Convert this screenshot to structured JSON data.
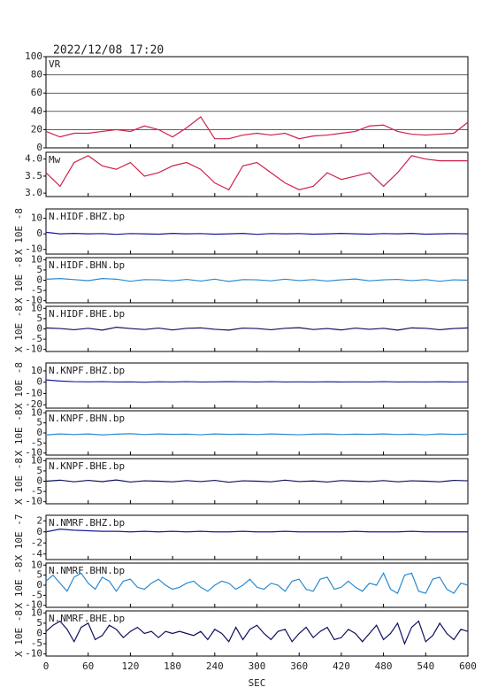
{
  "chart_data": [
    {
      "type": "line",
      "title": "2022/12/08 17:20",
      "x": [
        0,
        20,
        40,
        60,
        80,
        100,
        120,
        140,
        160,
        180,
        200,
        220,
        240,
        260,
        280,
        300,
        320,
        340,
        360,
        380,
        400,
        420,
        440,
        460,
        480,
        500,
        520,
        540,
        560,
        580,
        600
      ],
      "xlim": [
        0,
        600
      ],
      "ylim": [
        0,
        100
      ],
      "yticks": [
        0,
        20,
        40,
        60,
        80,
        100
      ],
      "grid": true,
      "series": [
        {
          "name": "VR",
          "color": "#d0204a",
          "values": [
            18,
            12,
            16,
            16,
            18,
            20,
            18,
            24,
            20,
            12,
            22,
            34,
            10,
            10,
            14,
            16,
            14,
            16,
            10,
            13,
            14,
            16,
            18,
            24,
            25,
            18,
            15,
            14,
            15,
            16,
            28
          ]
        }
      ]
    },
    {
      "type": "line",
      "x": [
        0,
        20,
        40,
        60,
        80,
        100,
        120,
        140,
        160,
        180,
        200,
        220,
        240,
        260,
        280,
        300,
        320,
        340,
        360,
        380,
        400,
        420,
        440,
        460,
        480,
        500,
        520,
        540,
        560,
        580,
        600
      ],
      "xlim": [
        0,
        600
      ],
      "ylim": [
        2.9,
        4.2
      ],
      "yticks": [
        {
          "value": 3,
          "label": "3.0"
        },
        3.5,
        {
          "value": 4,
          "label": "4.0"
        }
      ],
      "series": [
        {
          "name": "Mw",
          "color": "#d0204a",
          "values": [
            3.6,
            3.2,
            3.9,
            4.1,
            3.8,
            3.7,
            3.9,
            3.5,
            3.6,
            3.8,
            3.9,
            3.7,
            3.3,
            3.1,
            3.8,
            3.9,
            3.6,
            3.3,
            3.1,
            3.2,
            3.6,
            3.4,
            3.5,
            3.6,
            3.2,
            3.6,
            4.1,
            4.0,
            3.95,
            3.95,
            3.95
          ]
        }
      ]
    },
    {
      "type": "line",
      "ylabel": "X 10E -8",
      "x": [
        0,
        20,
        40,
        60,
        80,
        100,
        120,
        140,
        160,
        180,
        200,
        220,
        240,
        260,
        280,
        300,
        320,
        340,
        360,
        380,
        400,
        420,
        440,
        460,
        480,
        500,
        520,
        540,
        560,
        580,
        600
      ],
      "xlim": [
        0,
        600
      ],
      "ylim": [
        -13,
        16
      ],
      "yticks": [
        -10,
        0,
        10
      ],
      "series": [
        {
          "name": "N.HIDF.BHZ.bp",
          "color": "#1a1a9a",
          "values": [
            1,
            0,
            0.3,
            0,
            0.2,
            -0.3,
            0.2,
            0,
            -0.2,
            0.3,
            0,
            0.2,
            -0.2,
            0,
            0.3,
            -0.3,
            0.2,
            0,
            0.2,
            -0.2,
            0,
            0.3,
            0,
            -0.2,
            0.2,
            0,
            0.3,
            -0.2,
            0,
            0.2,
            0
          ]
        }
      ]
    },
    {
      "type": "line",
      "ylabel": "X 10E -8",
      "x": [
        0,
        20,
        40,
        60,
        80,
        100,
        120,
        140,
        160,
        180,
        200,
        220,
        240,
        260,
        280,
        300,
        320,
        340,
        360,
        380,
        400,
        420,
        440,
        460,
        480,
        500,
        520,
        540,
        560,
        580,
        600
      ],
      "xlim": [
        0,
        600
      ],
      "ylim": [
        -11,
        11
      ],
      "yticks": [
        -10,
        -5,
        0,
        5,
        10
      ],
      "series": [
        {
          "name": "N.HIDF.BHN.bp",
          "color": "#2a8ad0",
          "values": [
            0.5,
            0.8,
            0.3,
            -0.2,
            0.8,
            0.5,
            -0.5,
            0.3,
            0.2,
            -0.3,
            0.4,
            -0.4,
            0.5,
            -0.6,
            0.3,
            0.2,
            -0.3,
            0.5,
            -0.2,
            0.3,
            -0.4,
            0.2,
            0.6,
            -0.3,
            0.2,
            0.4,
            -0.2,
            0.3,
            -0.5,
            0.2,
            0
          ]
        }
      ]
    },
    {
      "type": "line",
      "ylabel": "X 10E -8",
      "x": [
        0,
        20,
        40,
        60,
        80,
        100,
        120,
        140,
        160,
        180,
        200,
        220,
        240,
        260,
        280,
        300,
        320,
        340,
        360,
        380,
        400,
        420,
        440,
        460,
        480,
        500,
        520,
        540,
        560,
        580,
        600
      ],
      "xlim": [
        0,
        600
      ],
      "ylim": [
        -11,
        11
      ],
      "yticks": [
        -10,
        -5,
        0,
        5,
        10
      ],
      "series": [
        {
          "name": "N.HIDF.BHE.bp",
          "color": "#101060",
          "values": [
            0.5,
            0.2,
            -0.4,
            0.3,
            -0.6,
            0.8,
            0.2,
            -0.3,
            0.4,
            -0.5,
            0.3,
            0.5,
            -0.2,
            -0.6,
            0.4,
            0.2,
            -0.4,
            0.3,
            0.6,
            -0.3,
            0.2,
            -0.5,
            0.4,
            -0.2,
            0.3,
            -0.6,
            0.5,
            0.3,
            -0.4,
            0.2,
            0.5
          ]
        }
      ]
    },
    {
      "type": "line",
      "ylabel": "X 10E -8",
      "x": [
        0,
        20,
        40,
        60,
        80,
        100,
        120,
        140,
        160,
        180,
        200,
        220,
        240,
        260,
        280,
        300,
        320,
        340,
        360,
        380,
        400,
        420,
        440,
        460,
        480,
        500,
        520,
        540,
        560,
        580,
        600
      ],
      "xlim": [
        0,
        600
      ],
      "ylim": [
        -23,
        17
      ],
      "yticks": [
        -20,
        -10,
        0,
        10
      ],
      "series": [
        {
          "name": "N.KNPF.BHZ.bp",
          "color": "#1a1a9a",
          "values": [
            2,
            1,
            0.5,
            0.3,
            0.5,
            0.2,
            0.3,
            0,
            0.4,
            0.2,
            0.5,
            0.2,
            0.3,
            0.5,
            0.4,
            0.2,
            0.5,
            0.2,
            0.3,
            0.2,
            0.4,
            0.2,
            0.3,
            0.2,
            0.5,
            0.2,
            0.3,
            0.2,
            0.4,
            0.2,
            0.3
          ]
        }
      ]
    },
    {
      "type": "line",
      "ylabel": "X 10E -8",
      "x": [
        0,
        20,
        40,
        60,
        80,
        100,
        120,
        140,
        160,
        180,
        200,
        220,
        240,
        260,
        280,
        300,
        320,
        340,
        360,
        380,
        400,
        420,
        440,
        460,
        480,
        500,
        520,
        540,
        560,
        580,
        600
      ],
      "xlim": [
        0,
        600
      ],
      "ylim": [
        -11,
        11
      ],
      "yticks": [
        -10,
        -5,
        0,
        5,
        10
      ],
      "series": [
        {
          "name": "N.KNPF.BHN.bp",
          "color": "#2a8ad0",
          "values": [
            -1,
            -0.5,
            -0.8,
            -0.5,
            -1,
            -0.6,
            -0.4,
            -0.8,
            -0.5,
            -0.7,
            -0.6,
            -0.9,
            -0.5,
            -0.7,
            -0.6,
            -0.8,
            -0.5,
            -0.7,
            -0.9,
            -0.6,
            -0.5,
            -0.8,
            -0.6,
            -0.7,
            -0.5,
            -0.8,
            -0.6,
            -0.9,
            -0.5,
            -0.7,
            -0.6
          ]
        }
      ]
    },
    {
      "type": "line",
      "ylabel": "X 10E -8",
      "x": [
        0,
        20,
        40,
        60,
        80,
        100,
        120,
        140,
        160,
        180,
        200,
        220,
        240,
        260,
        280,
        300,
        320,
        340,
        360,
        380,
        400,
        420,
        440,
        460,
        480,
        500,
        520,
        540,
        560,
        580,
        600
      ],
      "xlim": [
        0,
        600
      ],
      "ylim": [
        -11,
        11
      ],
      "yticks": [
        -10,
        -5,
        0,
        5,
        10
      ],
      "series": [
        {
          "name": "N.KNPF.BHE.bp",
          "color": "#101060",
          "values": [
            0,
            0.5,
            -0.3,
            0.4,
            -0.2,
            0.6,
            -0.4,
            0.2,
            0,
            -0.3,
            0.3,
            -0.2,
            0.4,
            -0.5,
            0.2,
            0,
            -0.3,
            0.5,
            -0.2,
            0.1,
            -0.4,
            0.3,
            0,
            -0.2,
            0.3,
            -0.3,
            0.2,
            0,
            -0.3,
            0.4,
            0.2
          ]
        }
      ]
    },
    {
      "type": "line",
      "ylabel": "X 10E -7",
      "x": [
        0,
        20,
        40,
        60,
        80,
        100,
        120,
        140,
        160,
        180,
        200,
        220,
        240,
        260,
        280,
        300,
        320,
        340,
        360,
        380,
        400,
        420,
        440,
        460,
        480,
        500,
        520,
        540,
        560,
        580,
        600
      ],
      "xlim": [
        0,
        600
      ],
      "ylim": [
        -5,
        3
      ],
      "yticks": [
        -4,
        -2,
        0,
        2
      ],
      "series": [
        {
          "name": "N.NMRF.BHZ.bp",
          "color": "#1a1a9a",
          "values": [
            0,
            0.5,
            0.3,
            0.2,
            0.1,
            0.1,
            0,
            0.1,
            0,
            0.1,
            0,
            0.1,
            0,
            0,
            0.1,
            0,
            0,
            0.1,
            0,
            0,
            0,
            0,
            0.1,
            0,
            0,
            0,
            0.1,
            0,
            0,
            0,
            0
          ]
        }
      ]
    },
    {
      "type": "line",
      "ylabel": "X 10E -8",
      "x": [
        0,
        10,
        20,
        30,
        40,
        50,
        60,
        70,
        80,
        90,
        100,
        110,
        120,
        130,
        140,
        150,
        160,
        170,
        180,
        190,
        200,
        210,
        220,
        230,
        240,
        250,
        260,
        270,
        280,
        290,
        300,
        310,
        320,
        330,
        340,
        350,
        360,
        370,
        380,
        390,
        400,
        410,
        420,
        430,
        440,
        450,
        460,
        470,
        480,
        490,
        500,
        510,
        520,
        530,
        540,
        550,
        560,
        570,
        580,
        590,
        600
      ],
      "xlim": [
        0,
        600
      ],
      "ylim": [
        -11,
        11
      ],
      "yticks": [
        -10,
        -5,
        0,
        5,
        10
      ],
      "series": [
        {
          "name": "N.NMRF.BHN.bp",
          "color": "#2a8ad0",
          "values": [
            2,
            5,
            1,
            -3,
            4,
            6,
            1,
            -2,
            4,
            2,
            -3,
            2,
            3,
            -1,
            -2,
            1,
            3,
            0,
            -2,
            -1,
            1,
            2,
            -1,
            -3,
            0,
            2,
            1,
            -2,
            0,
            3,
            -1,
            -2,
            1,
            0,
            -3,
            2,
            3,
            -2,
            -3,
            3,
            4,
            -2,
            -1,
            2,
            -1,
            -3,
            1,
            0,
            6,
            -2,
            -4,
            5,
            6,
            -3,
            -4,
            3,
            4,
            -2,
            -4,
            1,
            0
          ]
        }
      ]
    },
    {
      "type": "line",
      "ylabel": "X 10E -8",
      "xlabel": "SEC",
      "x": [
        0,
        10,
        20,
        30,
        40,
        50,
        60,
        70,
        80,
        90,
        100,
        110,
        120,
        130,
        140,
        150,
        160,
        170,
        180,
        190,
        200,
        210,
        220,
        230,
        240,
        250,
        260,
        270,
        280,
        290,
        300,
        310,
        320,
        330,
        340,
        350,
        360,
        370,
        380,
        390,
        400,
        410,
        420,
        430,
        440,
        450,
        460,
        470,
        480,
        490,
        500,
        510,
        520,
        530,
        540,
        550,
        560,
        570,
        580,
        590,
        600
      ],
      "xlim": [
        0,
        600
      ],
      "xticks": [
        0,
        60,
        120,
        180,
        240,
        300,
        360,
        420,
        480,
        540,
        600
      ],
      "ylim": [
        -11,
        11
      ],
      "yticks": [
        -10,
        -5,
        0,
        5,
        10
      ],
      "series": [
        {
          "name": "N.NMRF.BHE.bp",
          "color": "#101060",
          "values": [
            1,
            4,
            6,
            2,
            -4,
            3,
            5,
            -3,
            -1,
            4,
            2,
            -2,
            1,
            3,
            0,
            1,
            -2,
            1,
            0,
            1,
            0,
            -1,
            1,
            -3,
            2,
            0,
            -4,
            3,
            -3,
            2,
            4,
            0,
            -3,
            1,
            2,
            -4,
            0,
            3,
            -2,
            1,
            3,
            -3,
            -2,
            2,
            0,
            -4,
            0,
            4,
            -3,
            0,
            5,
            -5,
            3,
            6,
            -4,
            -1,
            5,
            0,
            -3,
            2,
            1
          ]
        }
      ]
    }
  ]
}
